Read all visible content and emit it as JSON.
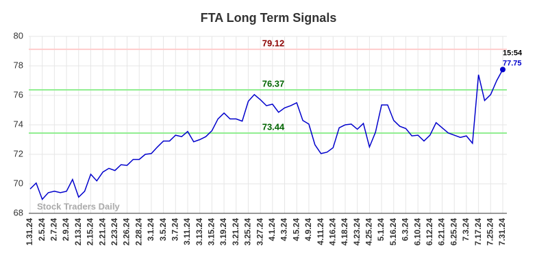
{
  "chart_data": {
    "type": "line",
    "title": "FTA Long Term Signals",
    "categories": [
      "1.31.24",
      null,
      "2.5.24",
      null,
      "2.7.24",
      null,
      "2.9.24",
      null,
      "2.13.24",
      null,
      "2.15.24",
      null,
      "2.21.24",
      null,
      "2.23.24",
      null,
      "2.26.24",
      null,
      "2.28.24",
      null,
      "3.1.24",
      null,
      "3.5.24",
      null,
      "3.7.24",
      null,
      "3.11.24",
      null,
      "3.13.24",
      null,
      "3.15.24",
      null,
      "3.19.24",
      null,
      "3.21.24",
      null,
      "3.25.24",
      null,
      "3.27.24",
      null,
      "4.1.24",
      null,
      "4.3.24",
      null,
      "4.5.24",
      null,
      "4.9.24",
      null,
      "4.11.24",
      null,
      "4.16.24",
      null,
      "4.18.24",
      null,
      "4.23.24",
      null,
      "4.25.24",
      null,
      "5.1.24",
      null,
      "5.16.24",
      null,
      "6.3.24",
      null,
      "6.10.24",
      null,
      "6.12.24",
      null,
      "6.21.24",
      null,
      "6.25.24",
      null,
      "7.3.24",
      null,
      "7.17.24",
      null,
      "7.25.24",
      null,
      "7.31.24"
    ],
    "values": [
      69.65,
      70.05,
      68.95,
      69.4,
      69.5,
      69.4,
      69.5,
      70.3,
      69.1,
      69.5,
      70.65,
      70.2,
      70.8,
      71.05,
      70.9,
      71.3,
      71.25,
      71.65,
      71.65,
      72.0,
      72.05,
      72.5,
      72.9,
      72.9,
      73.3,
      73.2,
      73.55,
      72.85,
      73.0,
      73.2,
      73.6,
      74.4,
      74.8,
      74.4,
      74.4,
      74.25,
      75.6,
      76.05,
      75.7,
      75.3,
      75.4,
      74.85,
      75.15,
      75.3,
      75.5,
      74.3,
      74.05,
      72.65,
      72.05,
      72.15,
      72.45,
      73.8,
      74.0,
      74.05,
      73.7,
      74.1,
      72.5,
      73.5,
      75.35,
      75.35,
      74.3,
      73.9,
      73.75,
      73.25,
      73.3,
      72.9,
      73.3,
      74.15,
      73.8,
      73.45,
      73.3,
      73.15,
      73.25,
      72.75,
      77.4,
      75.65,
      76.05,
      77.0,
      77.75
    ],
    "color": "#0000cc",
    "ylim": [
      68,
      80
    ],
    "yticks": [
      68,
      70,
      72,
      74,
      76,
      78,
      80
    ],
    "grid": true,
    "hlines": [
      {
        "value": 79.12,
        "color": "#ffcccc",
        "label_color": "#8b0000"
      },
      {
        "value": 76.37,
        "color": "#90ee90",
        "label_color": "#006400"
      },
      {
        "value": 73.44,
        "color": "#90ee90",
        "label_color": "#006400"
      }
    ],
    "last_time": "15:54",
    "watermark": "Stock Traders Daily"
  }
}
